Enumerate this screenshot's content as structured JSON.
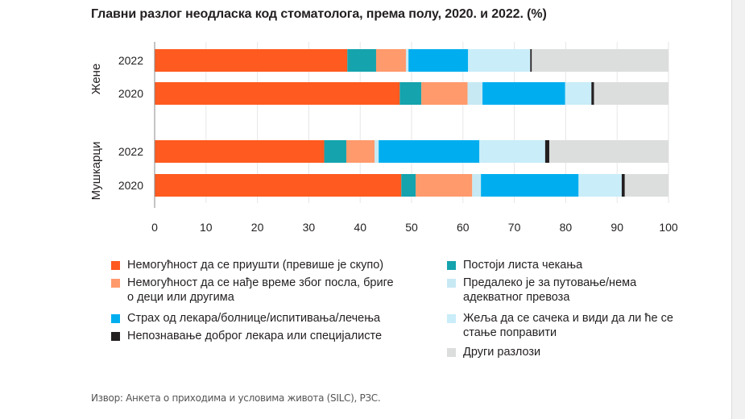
{
  "page": {
    "title": "Главни разлог неодласка код стоматолога, према полу, 2020. и 2022. (%)",
    "source": "Извор: Анкета о приходима и условима живота (SILC), РЗС."
  },
  "chart_data": {
    "type": "bar",
    "orientation": "horizontal",
    "stacked": true,
    "title": "Главни разлог неодласка код стоматолога, према полу, 2020. и 2022. (%)",
    "xlim": [
      0,
      100
    ],
    "xticks": [
      "0",
      "10",
      "20",
      "30",
      "40",
      "50",
      "60",
      "70",
      "80",
      "90",
      "100"
    ],
    "groups": [
      {
        "label": "Жене",
        "rows": [
          "2022",
          "2020"
        ]
      },
      {
        "label": "Мушкарци",
        "rows": [
          "2022",
          "2020"
        ]
      }
    ],
    "categories": [
      "Жене 2022",
      "Жене 2020",
      "Мушкарци 2022",
      "Мушкарци 2020"
    ],
    "legend_columns": 2,
    "series": [
      {
        "name": "Немогућност да се приушти (превише је скупо)",
        "color": "#ff5a1f",
        "values": [
          37.5,
          47.7,
          33.0,
          48.0
        ]
      },
      {
        "name": "Постоји листа чекања",
        "color": "#15a3ad",
        "values": [
          5.6,
          4.2,
          4.3,
          2.8
        ]
      },
      {
        "name": "Немогућност да се нађе време због посла, бриге о деци или другима",
        "color": "#ff9a6c",
        "values": [
          5.8,
          9.0,
          5.5,
          11.0
        ]
      },
      {
        "name": "Предалеко је за путовање/нема адекватног превоза",
        "color": "#c7e9f4",
        "values": [
          0.5,
          2.9,
          0.8,
          1.7
        ]
      },
      {
        "name": "Страх од лекара/болнице/испитивања/лечења",
        "color": "#00aeef",
        "values": [
          11.6,
          16.1,
          19.6,
          19.0
        ]
      },
      {
        "name": "Жеља да се сачека и види да ли ће се стање поправити",
        "color": "#c9edf9",
        "values": [
          12.1,
          5.1,
          12.8,
          8.4
        ]
      },
      {
        "name": "Непознавање доброг лекара или специјалисте",
        "color": "#231f20",
        "values": [
          0.3,
          0.5,
          0.8,
          0.6
        ]
      },
      {
        "name": "Други разлози",
        "color": "#dcdddd",
        "values": [
          26.6,
          14.5,
          23.2,
          8.5
        ]
      }
    ]
  }
}
